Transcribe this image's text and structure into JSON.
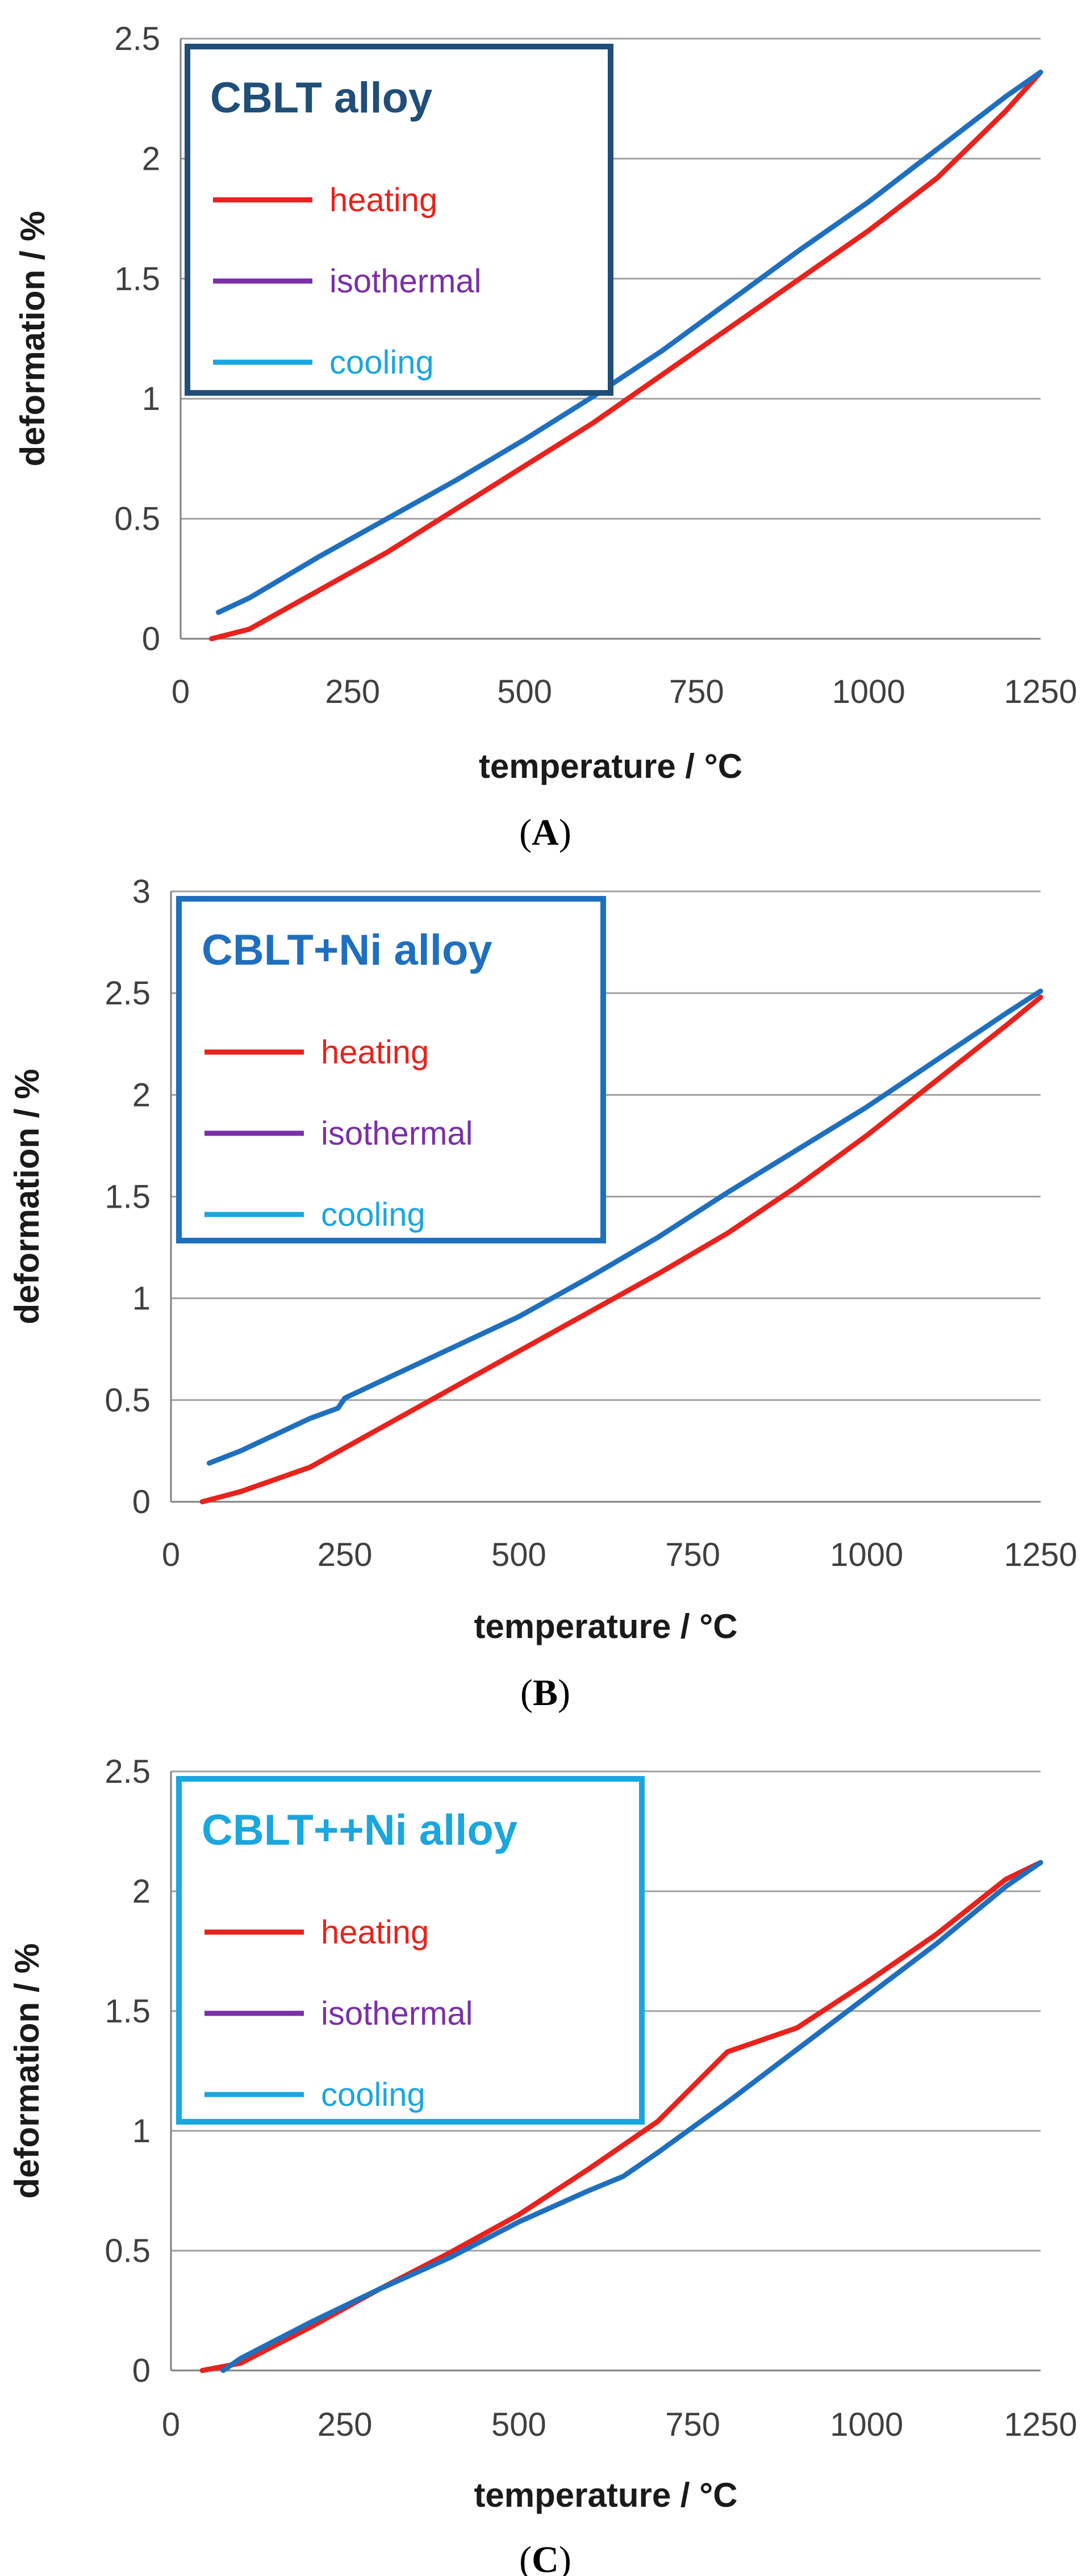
{
  "colors": {
    "heating": "#e8221c",
    "isothermal": "#7b2fa8",
    "cooling_line": "#1f6fbf",
    "cooling_legend": "#1aa6de",
    "grid": "#a0a0a0",
    "axis": "#808080"
  },
  "chart_data": [
    {
      "type": "line",
      "panel": "A",
      "caption": {
        "open": "(",
        "letter": "A",
        "close": ")"
      },
      "legend": {
        "title": "CBLT alloy",
        "title_color": "#1f4e79",
        "border_color": "#1f4e79",
        "entries": [
          {
            "label": "heating",
            "color": "#e8221c"
          },
          {
            "label": "isothermal",
            "color": "#7b2fa8"
          },
          {
            "label": "cooling",
            "color": "#1aa6de"
          }
        ]
      },
      "xlabel": "temperature / °C",
      "ylabel": "deformation / %",
      "xlim": [
        0,
        1250
      ],
      "ylim": [
        0,
        2.5
      ],
      "xticks": [
        "0",
        "250",
        "500",
        "750",
        "1000",
        "1250"
      ],
      "yticks": [
        "0",
        "0.5",
        "1",
        "1.5",
        "2",
        "2.5"
      ],
      "ytick_values": [
        0,
        0.5,
        1,
        1.5,
        2,
        2.5
      ],
      "series": [
        {
          "name": "heating",
          "color": "#e8221c",
          "x": [
            45,
            100,
            200,
            300,
            400,
            500,
            600,
            700,
            800,
            900,
            1000,
            1100,
            1200,
            1250
          ],
          "y": [
            0.0,
            0.04,
            0.2,
            0.36,
            0.54,
            0.72,
            0.9,
            1.1,
            1.3,
            1.5,
            1.7,
            1.92,
            2.2,
            2.36
          ]
        },
        {
          "name": "cooling",
          "color": "#1f6fbf",
          "x": [
            1250,
            1200,
            1100,
            1000,
            900,
            800,
            700,
            600,
            500,
            400,
            300,
            200,
            100,
            55
          ],
          "y": [
            2.36,
            2.26,
            2.04,
            1.82,
            1.62,
            1.41,
            1.2,
            1.01,
            0.83,
            0.66,
            0.5,
            0.34,
            0.17,
            0.11
          ]
        }
      ]
    },
    {
      "type": "line",
      "panel": "B",
      "caption": {
        "open": "(",
        "letter": "B",
        "close": ")"
      },
      "legend": {
        "title": "CBLT+Ni alloy",
        "title_color": "#1f6fbf",
        "border_color": "#1f6fbf",
        "entries": [
          {
            "label": "heating",
            "color": "#e8221c"
          },
          {
            "label": "isothermal",
            "color": "#7b2fa8"
          },
          {
            "label": "cooling",
            "color": "#1aa6de"
          }
        ]
      },
      "xlabel": "temperature / °C",
      "ylabel": "deformation / %",
      "xlim": [
        0,
        1250
      ],
      "ylim": [
        0,
        3
      ],
      "xticks": [
        "0",
        "250",
        "500",
        "750",
        "1000",
        "1250"
      ],
      "yticks": [
        "0",
        "0.5",
        "1",
        "1.5",
        "2",
        "2.5",
        "3"
      ],
      "ytick_values": [
        0,
        0.5,
        1,
        1.5,
        2,
        2.5,
        3
      ],
      "series": [
        {
          "name": "heating",
          "color": "#e8221c",
          "x": [
            45,
            100,
            200,
            300,
            400,
            500,
            600,
            700,
            800,
            900,
            1000,
            1100,
            1200,
            1250
          ],
          "y": [
            0.0,
            0.05,
            0.17,
            0.36,
            0.55,
            0.74,
            0.93,
            1.12,
            1.32,
            1.55,
            1.8,
            2.07,
            2.34,
            2.48
          ]
        },
        {
          "name": "cooling",
          "color": "#1f6fbf",
          "x": [
            1250,
            1200,
            1100,
            1000,
            900,
            800,
            700,
            600,
            500,
            400,
            300,
            250,
            240,
            200,
            100,
            55
          ],
          "y": [
            2.51,
            2.4,
            2.17,
            1.94,
            1.73,
            1.52,
            1.3,
            1.1,
            0.91,
            0.75,
            0.59,
            0.51,
            0.46,
            0.41,
            0.25,
            0.19
          ]
        }
      ]
    },
    {
      "type": "line",
      "panel": "C",
      "caption": {
        "open": "(",
        "letter": "C",
        "close": ")"
      },
      "legend": {
        "title": "CBLT++Ni alloy",
        "title_color": "#1aa6de",
        "border_color": "#1aa6de",
        "entries": [
          {
            "label": "heating",
            "color": "#e8221c"
          },
          {
            "label": "isothermal",
            "color": "#7b2fa8"
          },
          {
            "label": "cooling",
            "color": "#1aa6de"
          }
        ]
      },
      "xlabel": "temperature / °C",
      "ylabel": "deformation / %",
      "xlim": [
        0,
        1250
      ],
      "ylim": [
        0,
        2.5
      ],
      "xticks": [
        "0",
        "250",
        "500",
        "750",
        "1000",
        "1250"
      ],
      "yticks": [
        "0",
        "0.5",
        "1",
        "1.5",
        "2",
        "2.5"
      ],
      "ytick_values": [
        0,
        0.5,
        1,
        1.5,
        2,
        2.5
      ],
      "series": [
        {
          "name": "heating",
          "color": "#e8221c",
          "x": [
            45,
            100,
            200,
            300,
            400,
            500,
            600,
            700,
            800,
            900,
            1000,
            1100,
            1200,
            1250
          ],
          "y": [
            0.0,
            0.03,
            0.18,
            0.34,
            0.49,
            0.65,
            0.84,
            1.04,
            1.33,
            1.43,
            1.62,
            1.82,
            2.05,
            2.12
          ]
        },
        {
          "name": "cooling",
          "color": "#1f6fbf",
          "x": [
            1250,
            1200,
            1100,
            1000,
            900,
            800,
            700,
            650,
            600,
            500,
            400,
            300,
            200,
            100,
            75
          ],
          "y": [
            2.12,
            2.02,
            1.78,
            1.56,
            1.34,
            1.12,
            0.91,
            0.81,
            0.75,
            0.62,
            0.47,
            0.34,
            0.2,
            0.05,
            0.0
          ]
        }
      ]
    }
  ]
}
